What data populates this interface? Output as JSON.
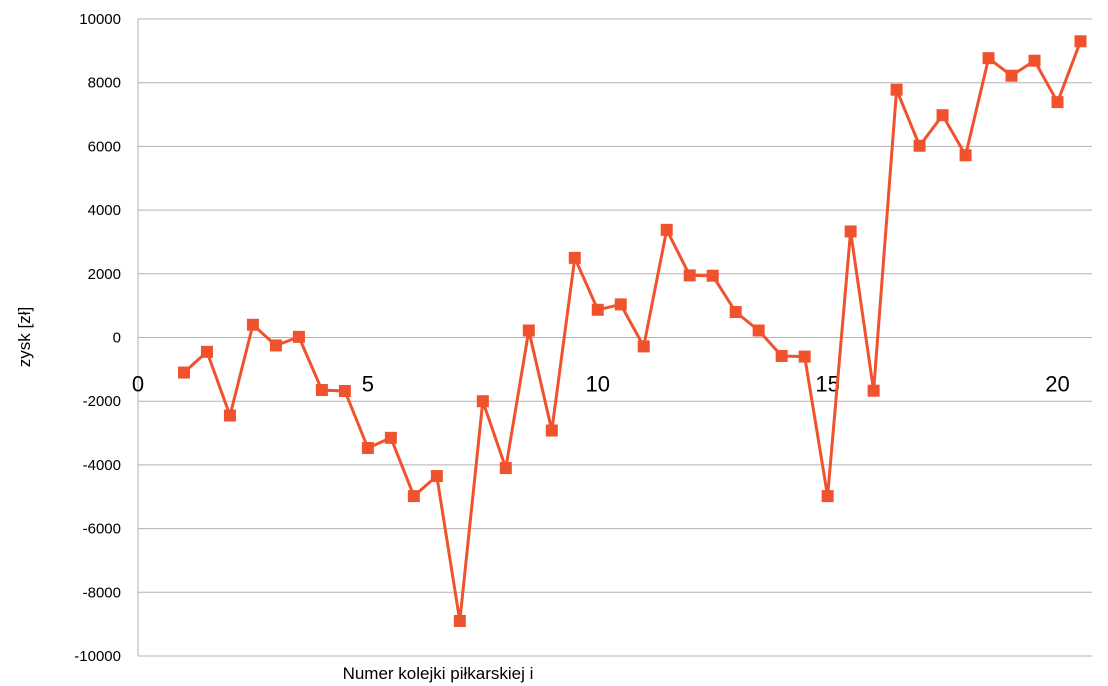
{
  "chart_data": {
    "type": "line",
    "xlabel": "Numer kolejki piłkarskiej  i",
    "ylabel": "zysk [zł]",
    "xlim": [
      0,
      20.75
    ],
    "ylim": [
      -10000,
      10000
    ],
    "xticks": [
      0,
      5,
      10,
      15,
      20
    ],
    "yticks": [
      -10000,
      -8000,
      -6000,
      -4000,
      -2000,
      0,
      2000,
      4000,
      6000,
      8000,
      10000
    ],
    "grid": "horizontal",
    "legend": "none",
    "colors": {
      "series": "#f0522d",
      "grid": "#b3b3b3",
      "axis": "#b3b3b3"
    },
    "series": [
      {
        "x": [
          1,
          1.5,
          2,
          2.5,
          3,
          3.5,
          4,
          4.5,
          5,
          5.5,
          6,
          6.5,
          7,
          7.5,
          8,
          8.5,
          9,
          9.5,
          10,
          10.5,
          11,
          11.5,
          12,
          12.5,
          13,
          13.5,
          14,
          14.5,
          15,
          15.5,
          16,
          16.5,
          17,
          17.5,
          18,
          18.5,
          19,
          19.5,
          20,
          20.5
        ],
        "values": [
          -1100,
          -450,
          -2450,
          400,
          -250,
          20,
          -1650,
          -1680,
          -3470,
          -3150,
          -4980,
          -4350,
          -8900,
          -2000,
          -4100,
          220,
          -2920,
          2500,
          870,
          1040,
          -280,
          3380,
          1950,
          1940,
          800,
          220,
          -580,
          -600,
          -4980,
          3330,
          -1670,
          7780,
          6020,
          6980,
          5720,
          8770,
          8220,
          8690,
          7390,
          9300
        ]
      }
    ]
  }
}
